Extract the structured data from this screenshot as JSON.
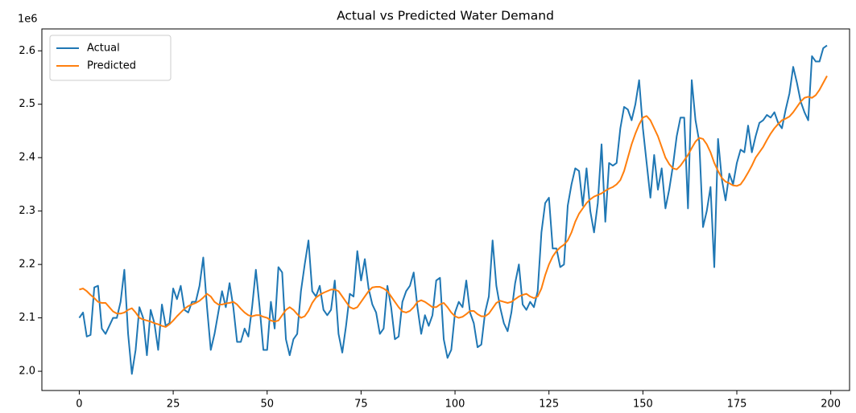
{
  "chart_data": {
    "type": "line",
    "title": "Actual vs Predicted Water Demand",
    "y_offset_label": "1e6",
    "x": [
      0,
      1,
      2,
      3,
      4,
      5,
      6,
      7,
      8,
      9,
      10,
      11,
      12,
      13,
      14,
      15,
      16,
      17,
      18,
      19,
      20,
      21,
      22,
      23,
      24,
      25,
      26,
      27,
      28,
      29,
      30,
      31,
      32,
      33,
      34,
      35,
      36,
      37,
      38,
      39,
      40,
      41,
      42,
      43,
      44,
      45,
      46,
      47,
      48,
      49,
      50,
      51,
      52,
      53,
      54,
      55,
      56,
      57,
      58,
      59,
      60,
      61,
      62,
      63,
      64,
      65,
      66,
      67,
      68,
      69,
      70,
      71,
      72,
      73,
      74,
      75,
      76,
      77,
      78,
      79,
      80,
      81,
      82,
      83,
      84,
      85,
      86,
      87,
      88,
      89,
      90,
      91,
      92,
      93,
      94,
      95,
      96,
      97,
      98,
      99,
      100,
      101,
      102,
      103,
      104,
      105,
      106,
      107,
      108,
      109,
      110,
      111,
      112,
      113,
      114,
      115,
      116,
      117,
      118,
      119,
      120,
      121,
      122,
      123,
      124,
      125,
      126,
      127,
      128,
      129,
      130,
      131,
      132,
      133,
      134,
      135,
      136,
      137,
      138,
      139,
      140,
      141,
      142,
      143,
      144,
      145,
      146,
      147,
      148,
      149,
      150,
      151,
      152,
      153,
      154,
      155,
      156,
      157,
      158,
      159,
      160,
      161,
      162,
      163,
      164,
      165,
      166,
      167,
      168,
      169,
      170,
      171,
      172,
      173,
      174,
      175,
      176,
      177,
      178,
      179,
      180,
      181,
      182,
      183,
      184,
      185,
      186,
      187,
      188,
      189,
      190,
      191,
      192,
      193,
      194,
      195,
      196,
      197,
      198,
      199
    ],
    "series": [
      {
        "name": "Actual",
        "color": "#1f77b4",
        "values": [
          2.1,
          2.11,
          2.065,
          2.068,
          2.157,
          2.16,
          2.08,
          2.07,
          2.085,
          2.1,
          2.1,
          2.13,
          2.19,
          2.07,
          1.995,
          2.04,
          2.12,
          2.1,
          2.03,
          2.115,
          2.09,
          2.04,
          2.125,
          2.085,
          2.09,
          2.155,
          2.135,
          2.16,
          2.115,
          2.11,
          2.13,
          2.13,
          2.16,
          2.213,
          2.12,
          2.04,
          2.07,
          2.11,
          2.15,
          2.12,
          2.165,
          2.12,
          2.055,
          2.055,
          2.08,
          2.065,
          2.12,
          2.19,
          2.12,
          2.04,
          2.04,
          2.13,
          2.08,
          2.195,
          2.185,
          2.06,
          2.03,
          2.06,
          2.07,
          2.15,
          2.2,
          2.245,
          2.15,
          2.14,
          2.16,
          2.115,
          2.105,
          2.115,
          2.17,
          2.07,
          2.035,
          2.085,
          2.145,
          2.14,
          2.225,
          2.17,
          2.21,
          2.155,
          2.125,
          2.11,
          2.07,
          2.08,
          2.16,
          2.12,
          2.06,
          2.065,
          2.13,
          2.15,
          2.16,
          2.185,
          2.12,
          2.07,
          2.105,
          2.085,
          2.105,
          2.17,
          2.175,
          2.06,
          2.025,
          2.04,
          2.11,
          2.13,
          2.12,
          2.17,
          2.11,
          2.09,
          2.045,
          2.05,
          2.11,
          2.14,
          2.245,
          2.16,
          2.12,
          2.09,
          2.075,
          2.11,
          2.165,
          2.2,
          2.125,
          2.115,
          2.13,
          2.12,
          2.15,
          2.26,
          2.315,
          2.325,
          2.23,
          2.23,
          2.195,
          2.2,
          2.31,
          2.35,
          2.38,
          2.375,
          2.31,
          2.38,
          2.3,
          2.26,
          2.315,
          2.425,
          2.28,
          2.39,
          2.385,
          2.39,
          2.455,
          2.495,
          2.49,
          2.47,
          2.5,
          2.545,
          2.455,
          2.39,
          2.325,
          2.405,
          2.34,
          2.38,
          2.305,
          2.34,
          2.385,
          2.44,
          2.475,
          2.475,
          2.305,
          2.545,
          2.47,
          2.43,
          2.27,
          2.3,
          2.345,
          2.195,
          2.435,
          2.36,
          2.32,
          2.37,
          2.35,
          2.39,
          2.415,
          2.41,
          2.46,
          2.41,
          2.44,
          2.465,
          2.47,
          2.48,
          2.475,
          2.485,
          2.465,
          2.455,
          2.49,
          2.52,
          2.57,
          2.54,
          2.505,
          2.485,
          2.47,
          2.59,
          2.58,
          2.58,
          2.605,
          2.61
        ]
      },
      {
        "name": "Predicted",
        "color": "#ff7f0e",
        "values": [
          2.153,
          2.155,
          2.15,
          2.143,
          2.137,
          2.13,
          2.128,
          2.128,
          2.12,
          2.112,
          2.108,
          2.108,
          2.11,
          2.115,
          2.118,
          2.11,
          2.1,
          2.097,
          2.095,
          2.093,
          2.09,
          2.088,
          2.085,
          2.083,
          2.088,
          2.095,
          2.103,
          2.11,
          2.117,
          2.122,
          2.125,
          2.128,
          2.132,
          2.138,
          2.145,
          2.14,
          2.13,
          2.125,
          2.125,
          2.127,
          2.128,
          2.13,
          2.125,
          2.117,
          2.11,
          2.105,
          2.103,
          2.105,
          2.105,
          2.102,
          2.1,
          2.095,
          2.093,
          2.095,
          2.105,
          2.115,
          2.12,
          2.115,
          2.107,
          2.1,
          2.103,
          2.113,
          2.128,
          2.138,
          2.143,
          2.147,
          2.15,
          2.153,
          2.153,
          2.15,
          2.14,
          2.13,
          2.12,
          2.117,
          2.12,
          2.13,
          2.14,
          2.15,
          2.157,
          2.158,
          2.158,
          2.155,
          2.15,
          2.14,
          2.13,
          2.12,
          2.112,
          2.11,
          2.113,
          2.12,
          2.13,
          2.133,
          2.13,
          2.125,
          2.12,
          2.12,
          2.125,
          2.128,
          2.12,
          2.11,
          2.103,
          2.1,
          2.102,
          2.107,
          2.113,
          2.113,
          2.107,
          2.103,
          2.103,
          2.108,
          2.118,
          2.128,
          2.132,
          2.13,
          2.128,
          2.13,
          2.135,
          2.14,
          2.143,
          2.145,
          2.14,
          2.137,
          2.14,
          2.155,
          2.18,
          2.2,
          2.215,
          2.225,
          2.232,
          2.237,
          2.245,
          2.26,
          2.28,
          2.295,
          2.305,
          2.315,
          2.322,
          2.327,
          2.33,
          2.333,
          2.338,
          2.342,
          2.345,
          2.35,
          2.358,
          2.375,
          2.4,
          2.425,
          2.445,
          2.462,
          2.475,
          2.478,
          2.47,
          2.455,
          2.44,
          2.42,
          2.4,
          2.388,
          2.38,
          2.378,
          2.385,
          2.395,
          2.405,
          2.418,
          2.43,
          2.437,
          2.435,
          2.425,
          2.41,
          2.39,
          2.375,
          2.362,
          2.355,
          2.352,
          2.348,
          2.347,
          2.35,
          2.36,
          2.372,
          2.385,
          2.4,
          2.41,
          2.42,
          2.433,
          2.445,
          2.455,
          2.463,
          2.47,
          2.473,
          2.477,
          2.485,
          2.495,
          2.505,
          2.512,
          2.514,
          2.512,
          2.517,
          2.527,
          2.54,
          2.553
        ]
      }
    ],
    "xlim": [
      -9.95,
      205
    ],
    "ylim": [
      1.964,
      2.641
    ],
    "xticks": [
      0,
      25,
      50,
      75,
      100,
      125,
      150,
      175,
      200
    ],
    "yticks": [
      {
        "value": 2.0,
        "label": "2.0"
      },
      2.1,
      2.2,
      2.3,
      2.4,
      2.5,
      2.6
    ],
    "grid": false,
    "legend": "upper left"
  }
}
